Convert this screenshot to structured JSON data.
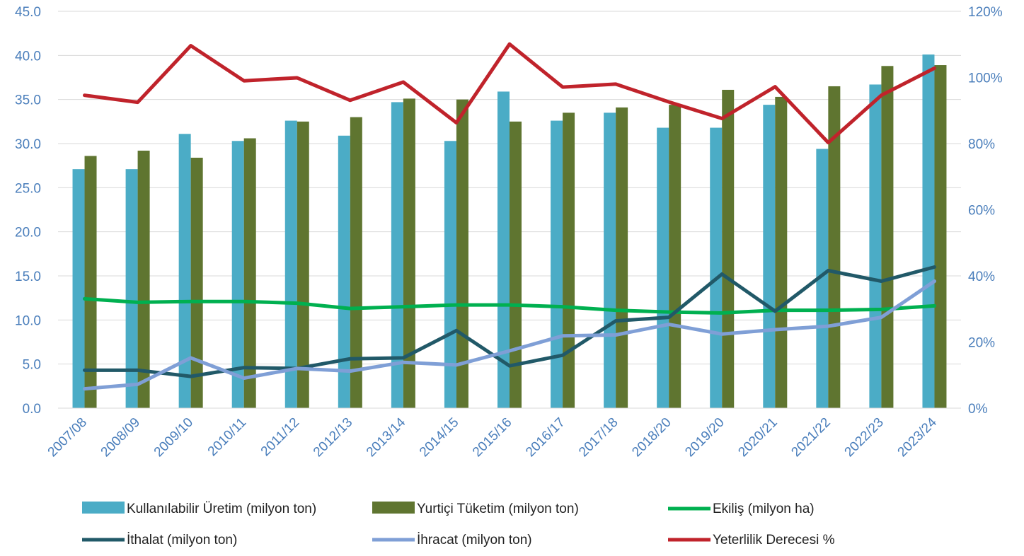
{
  "chart_data": {
    "type": "bar",
    "categories": [
      "2007/08",
      "2008/09",
      "2009/10",
      "2010/11",
      "2011/12",
      "2012/13",
      "2013/14",
      "2014/15",
      "2015/16",
      "2016/17",
      "2017/18",
      "2018/20",
      "2019/20",
      "2020/21",
      "2021/22",
      "2022/23",
      "2023/24"
    ],
    "y_left": {
      "ylim": [
        0,
        45
      ],
      "ticks": [
        "0.0",
        "5.0",
        "10.0",
        "15.0",
        "20.0",
        "25.0",
        "30.0",
        "35.0",
        "40.0",
        "45.0"
      ]
    },
    "y_right": {
      "ylim": [
        0,
        120
      ],
      "ticks": [
        "0%",
        "20%",
        "40%",
        "60%",
        "80%",
        "100%",
        "120%"
      ]
    },
    "grid": true,
    "legend_position": "bottom",
    "series": [
      {
        "name": "Kullanılabilir Üretim (milyon ton)",
        "type": "bar",
        "axis": "left",
        "color": "#4bacc6",
        "values": [
          27.1,
          27.1,
          31.1,
          30.3,
          32.6,
          30.9,
          34.7,
          30.3,
          35.9,
          32.6,
          33.5,
          31.8,
          31.8,
          34.4,
          29.4,
          36.7,
          40.1
        ]
      },
      {
        "name": "Yurtiçi Tüketim (milyon ton)",
        "type": "bar",
        "axis": "left",
        "color": "#5f7530",
        "values": [
          28.6,
          29.2,
          28.4,
          30.6,
          32.5,
          33.0,
          35.1,
          35.0,
          32.5,
          33.5,
          34.1,
          34.4,
          36.1,
          35.3,
          36.5,
          38.8,
          38.9
        ]
      },
      {
        "name": "Ekiliş (milyon ha)",
        "type": "line",
        "axis": "left",
        "color": "#00b050",
        "values": [
          12.4,
          12.0,
          12.1,
          12.1,
          11.9,
          11.3,
          11.5,
          11.7,
          11.7,
          11.5,
          11.1,
          10.9,
          10.8,
          11.1,
          11.1,
          11.2,
          11.6
        ]
      },
      {
        "name": "İthalat (milyon ton)",
        "type": "line",
        "axis": "left",
        "color": "#215968",
        "values": [
          4.3,
          4.3,
          3.6,
          4.6,
          4.5,
          5.6,
          5.7,
          8.8,
          4.8,
          6.0,
          9.9,
          10.3,
          15.2,
          11.0,
          15.6,
          14.4,
          16.0
        ]
      },
      {
        "name": "İhracat (milyon ton)",
        "type": "line",
        "axis": "left",
        "color": "#7f9fd6",
        "values": [
          2.2,
          2.7,
          5.7,
          3.4,
          4.5,
          4.2,
          5.2,
          4.9,
          6.5,
          8.2,
          8.3,
          9.5,
          8.4,
          8.9,
          9.3,
          10.3,
          14.4
        ]
      },
      {
        "name": "Yeterlilik Derecesi %",
        "type": "line",
        "axis": "right",
        "color": "#c0232b",
        "values": [
          94.6,
          92.5,
          109.6,
          99.0,
          99.9,
          93.1,
          98.6,
          86.3,
          110.1,
          97.1,
          98.0,
          92.6,
          87.6,
          97.2,
          80.3,
          94.6,
          102.8
        ]
      }
    ]
  }
}
